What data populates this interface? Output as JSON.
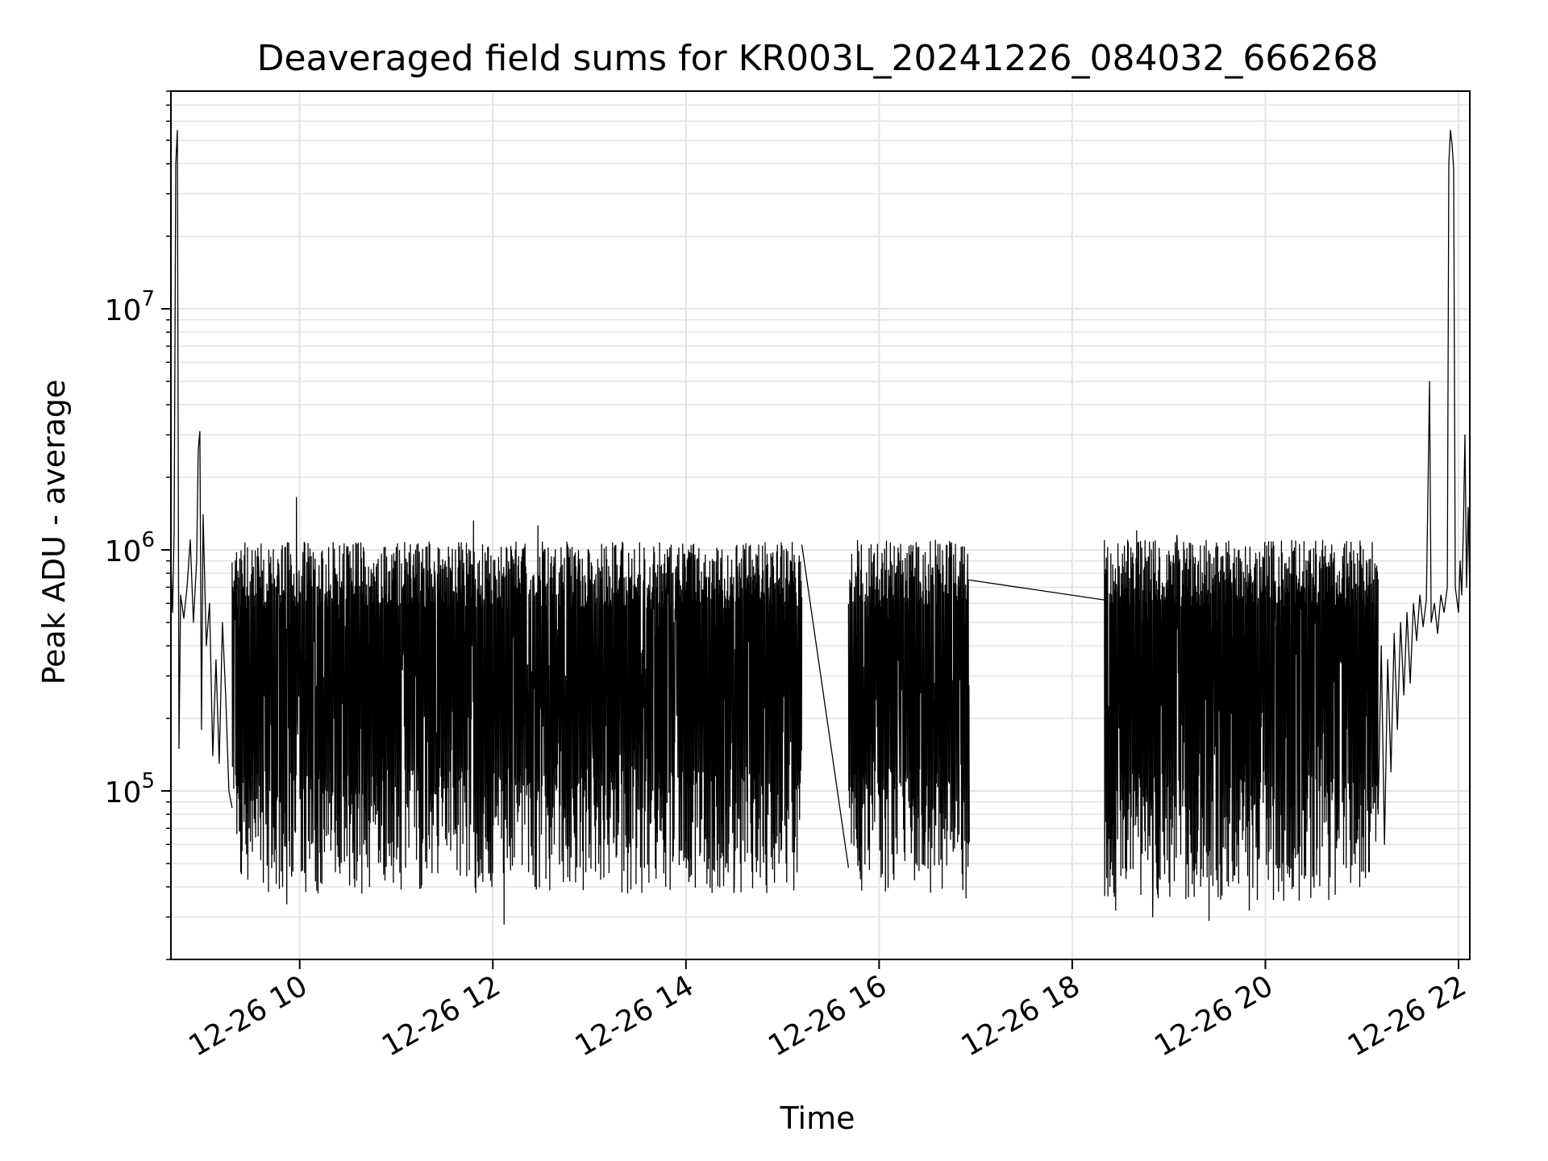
{
  "chart_data": {
    "type": "line",
    "title": "Deaveraged field sums for KR003L_20241226_084032_666268",
    "xlabel": "Time",
    "ylabel": "Peak ADU - average",
    "yscale": "log",
    "ylim": [
      20000,
      80000000
    ],
    "xlim": [
      "2024-12-26 08:40",
      "2024-12-26 22:07"
    ],
    "grid": true,
    "line_color": "#000000",
    "x_ticks": [
      {
        "value": "2024-12-26 10:00",
        "label": "12-26 10"
      },
      {
        "value": "2024-12-26 12:00",
        "label": "12-26 12"
      },
      {
        "value": "2024-12-26 14:00",
        "label": "12-26 14"
      },
      {
        "value": "2024-12-26 16:00",
        "label": "12-26 16"
      },
      {
        "value": "2024-12-26 18:00",
        "label": "12-26 18"
      },
      {
        "value": "2024-12-26 20:00",
        "label": "12-26 20"
      },
      {
        "value": "2024-12-26 22:00",
        "label": "12-26 22"
      }
    ],
    "y_ticks": [
      {
        "value": 100000,
        "base": "10",
        "exp": "5"
      },
      {
        "value": 1000000,
        "base": "10",
        "exp": "6"
      },
      {
        "value": 10000000,
        "base": "10",
        "exp": "7"
      }
    ],
    "segments": [
      {
        "start": "2024-12-26 08:40",
        "end": "2024-12-26 09:18",
        "points": [
          [
            "2024-12-26 08:40",
            900000
          ],
          [
            "2024-12-26 08:41",
            550000
          ],
          [
            "2024-12-26 08:42",
            1200000
          ],
          [
            "2024-12-26 08:43",
            40000000
          ],
          [
            "2024-12-26 08:44",
            55000000
          ],
          [
            "2024-12-26 08:45",
            150000
          ],
          [
            "2024-12-26 08:46",
            650000
          ],
          [
            "2024-12-26 08:48",
            520000
          ],
          [
            "2024-12-26 08:50",
            700000
          ],
          [
            "2024-12-26 08:52",
            1100000
          ],
          [
            "2024-12-26 08:54",
            500000
          ],
          [
            "2024-12-26 08:56",
            900000
          ],
          [
            "2024-12-26 08:57",
            2600000
          ],
          [
            "2024-12-26 08:58",
            3100000
          ],
          [
            "2024-12-26 08:59",
            180000
          ],
          [
            "2024-12-26 09:00",
            1400000
          ],
          [
            "2024-12-26 09:02",
            400000
          ],
          [
            "2024-12-26 09:04",
            600000
          ],
          [
            "2024-12-26 09:06",
            140000
          ],
          [
            "2024-12-26 09:08",
            350000
          ],
          [
            "2024-12-26 09:10",
            130000
          ],
          [
            "2024-12-26 09:12",
            500000
          ],
          [
            "2024-12-26 09:14",
            250000
          ],
          [
            "2024-12-26 09:16",
            100000
          ],
          [
            "2024-12-26 09:18",
            85000
          ]
        ]
      },
      {
        "start": "2024-12-26 09:18",
        "end": "2024-12-26 15:12",
        "lo": 45000,
        "hi": 1080000,
        "deep_min": [
          [
            "2024-12-26 09:52",
            34000
          ],
          [
            "2024-12-26 12:07",
            28000
          ],
          [
            "2024-12-26 14:30",
            40000
          ]
        ],
        "peaks": [
          [
            "2024-12-26 09:58",
            1650000
          ],
          [
            "2024-12-26 11:48",
            1320000
          ],
          [
            "2024-12-26 12:28",
            1260000
          ]
        ]
      },
      {
        "bridge": [
          [
            "2024-12-26 15:12",
            1050000
          ],
          [
            "2024-12-26 15:41",
            48000
          ]
        ]
      },
      {
        "start": "2024-12-26 15:41",
        "end": "2024-12-26 16:56",
        "lo": 45000,
        "hi": 1100000,
        "deep_min": [
          [
            "2024-12-26 16:32",
            38000
          ],
          [
            "2024-12-26 16:54",
            36000
          ]
        ],
        "peaks": []
      },
      {
        "bridge": [
          [
            "2024-12-26 16:56",
            750000
          ],
          [
            "2024-12-26 18:20",
            620000
          ]
        ]
      },
      {
        "start": "2024-12-26 18:20",
        "end": "2024-12-26 21:10",
        "lo": 42000,
        "hi": 1100000,
        "deep_min": [
          [
            "2024-12-26 18:27",
            32000
          ],
          [
            "2024-12-26 18:50",
            30000
          ],
          [
            "2024-12-26 19:25",
            29000
          ],
          [
            "2024-12-26 19:50",
            32000
          ]
        ],
        "peaks": [
          [
            "2024-12-26 18:40",
            1200000
          ],
          [
            "2024-12-26 19:05",
            1150000
          ]
        ]
      },
      {
        "start": "2024-12-26 21:10",
        "end": "2024-12-26 22:07",
        "points": [
          [
            "2024-12-26 21:10",
            80000
          ],
          [
            "2024-12-26 21:12",
            400000
          ],
          [
            "2024-12-26 21:14",
            60000
          ],
          [
            "2024-12-26 21:16",
            350000
          ],
          [
            "2024-12-26 21:18",
            120000
          ],
          [
            "2024-12-26 21:20",
            450000
          ],
          [
            "2024-12-26 21:22",
            180000
          ],
          [
            "2024-12-26 21:24",
            500000
          ],
          [
            "2024-12-26 21:26",
            250000
          ],
          [
            "2024-12-26 21:28",
            550000
          ],
          [
            "2024-12-26 21:30",
            280000
          ],
          [
            "2024-12-26 21:32",
            600000
          ],
          [
            "2024-12-26 21:34",
            420000
          ],
          [
            "2024-12-26 21:36",
            650000
          ],
          [
            "2024-12-26 21:38",
            480000
          ],
          [
            "2024-12-26 21:40",
            620000
          ],
          [
            "2024-12-26 21:42",
            5000000
          ],
          [
            "2024-12-26 21:43",
            500000
          ],
          [
            "2024-12-26 21:45",
            600000
          ],
          [
            "2024-12-26 21:47",
            450000
          ],
          [
            "2024-12-26 21:49",
            650000
          ],
          [
            "2024-12-26 21:51",
            550000
          ],
          [
            "2024-12-26 21:53",
            700000
          ],
          [
            "2024-12-26 21:54",
            40000000
          ],
          [
            "2024-12-26 21:55",
            55000000
          ],
          [
            "2024-12-26 21:56",
            48000000
          ],
          [
            "2024-12-26 21:57",
            38000000
          ],
          [
            "2024-12-26 21:58",
            700000
          ],
          [
            "2024-12-26 22:00",
            550000
          ],
          [
            "2024-12-26 22:01",
            900000
          ],
          [
            "2024-12-26 22:02",
            650000
          ],
          [
            "2024-12-26 22:03",
            1200000
          ],
          [
            "2024-12-26 22:04",
            3000000
          ],
          [
            "2024-12-26 22:05",
            700000
          ],
          [
            "2024-12-26 22:06",
            1500000
          ],
          [
            "2024-12-26 22:07",
            650000
          ]
        ]
      }
    ]
  }
}
